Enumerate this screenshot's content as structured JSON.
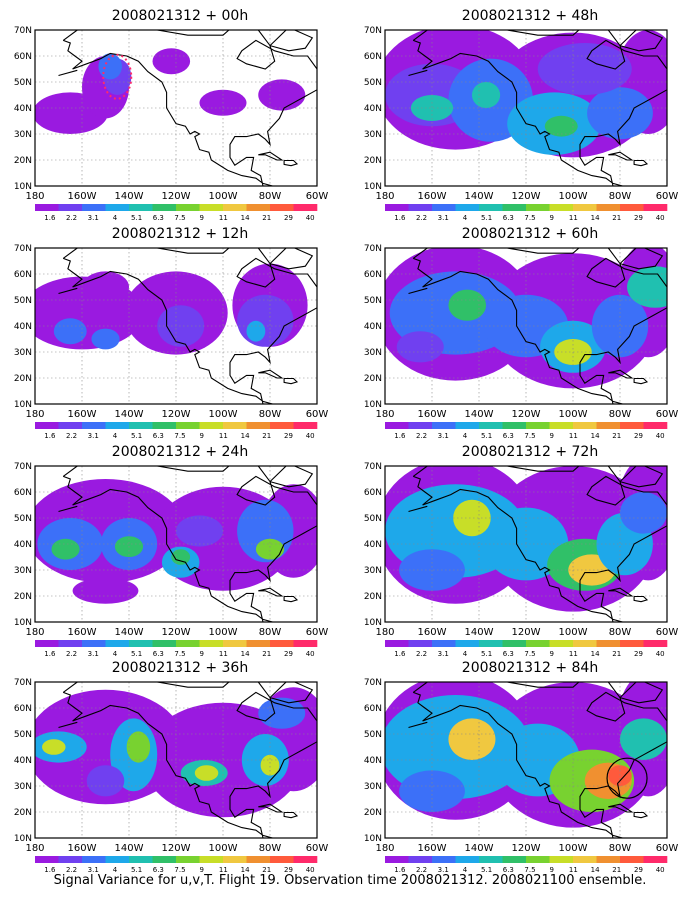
{
  "palette": [
    "#9a1ae0",
    "#7040f0",
    "#3c70f8",
    "#1ea8ea",
    "#20c0b0",
    "#30c068",
    "#78d230",
    "#c8de28",
    "#f0c840",
    "#f09030",
    "#ff5a3c",
    "#ff2a6a"
  ],
  "colorbar_ticks": [
    "1.6",
    "2.2",
    "3.1",
    "4",
    "5.1",
    "6.3",
    "7.5",
    "9",
    "11",
    "14",
    "21",
    "29",
    "40"
  ],
  "lat_ticks": [
    "70N",
    "60N",
    "50N",
    "40N",
    "30N",
    "20N",
    "10N"
  ],
  "lon_ticks": [
    "180",
    "160W",
    "140W",
    "120W",
    "100W",
    "80W",
    "60W"
  ],
  "caption": "Signal Variance for u,v,T. Flight 19. Observation time 2008021312. 2008021100 ensemble.",
  "panels": [
    {
      "id": "00h",
      "title": "2008021312 + 00h",
      "max_level": 2
    },
    {
      "id": "48h",
      "title": "2008021312 + 48h",
      "max_level": 6
    },
    {
      "id": "12h",
      "title": "2008021312 + 12h",
      "max_level": 3
    },
    {
      "id": "60h",
      "title": "2008021312 + 60h",
      "max_level": 8
    },
    {
      "id": "24h",
      "title": "2008021312 + 24h",
      "max_level": 6
    },
    {
      "id": "72h",
      "title": "2008021312 + 72h",
      "max_level": 9
    },
    {
      "id": "36h",
      "title": "2008021312 + 36h",
      "max_level": 8
    },
    {
      "id": "84h",
      "title": "2008021312 + 84h",
      "max_level": 10
    }
  ],
  "chart_data": {
    "type": "heatmap",
    "caption": "Signal Variance for u,v,T. Flight 19. Observation time 2008021312. 2008021100 ensemble.",
    "xlim": [
      "180",
      "60W"
    ],
    "ylim": [
      "10N",
      "70N"
    ],
    "contour_levels": [
      1.6,
      2.2,
      3.1,
      4,
      5.1,
      6.3,
      7.5,
      9,
      11,
      14,
      21,
      29,
      40
    ],
    "panels": [
      "2008021312 + 00h",
      "2008021312 + 12h",
      "2008021312 + 24h",
      "2008021312 + 36h",
      "2008021312 + 48h",
      "2008021312 + 60h",
      "2008021312 + 72h",
      "2008021312 + 84h"
    ]
  }
}
